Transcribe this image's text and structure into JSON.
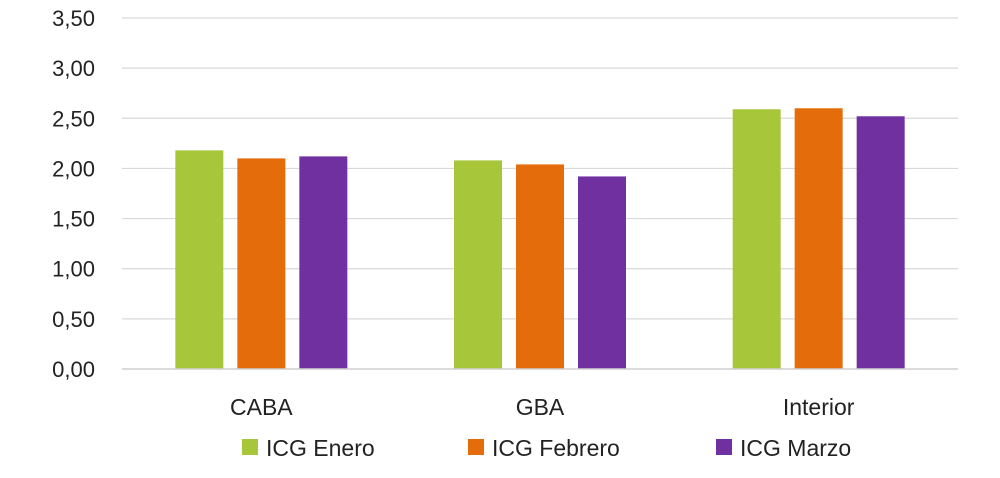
{
  "chart_data": {
    "type": "bar",
    "categories": [
      "CABA",
      "GBA",
      "Interior"
    ],
    "series": [
      {
        "name": "ICG Enero",
        "color": "#a8c63a",
        "values": [
          2.18,
          2.08,
          2.59
        ]
      },
      {
        "name": "ICG Febrero",
        "color": "#e46c0a",
        "values": [
          2.1,
          2.04,
          2.6
        ]
      },
      {
        "name": "ICG Marzo",
        "color": "#7030a0",
        "values": [
          2.12,
          1.92,
          2.52
        ]
      }
    ],
    "ylim": [
      0,
      3.5
    ],
    "yticks": [
      "0,00",
      "0,50",
      "1,00",
      "1,50",
      "2,00",
      "2,50",
      "3,00",
      "3,50"
    ],
    "grid": true,
    "legend_position": "bottom",
    "title": "",
    "xlabel": "",
    "ylabel": ""
  }
}
